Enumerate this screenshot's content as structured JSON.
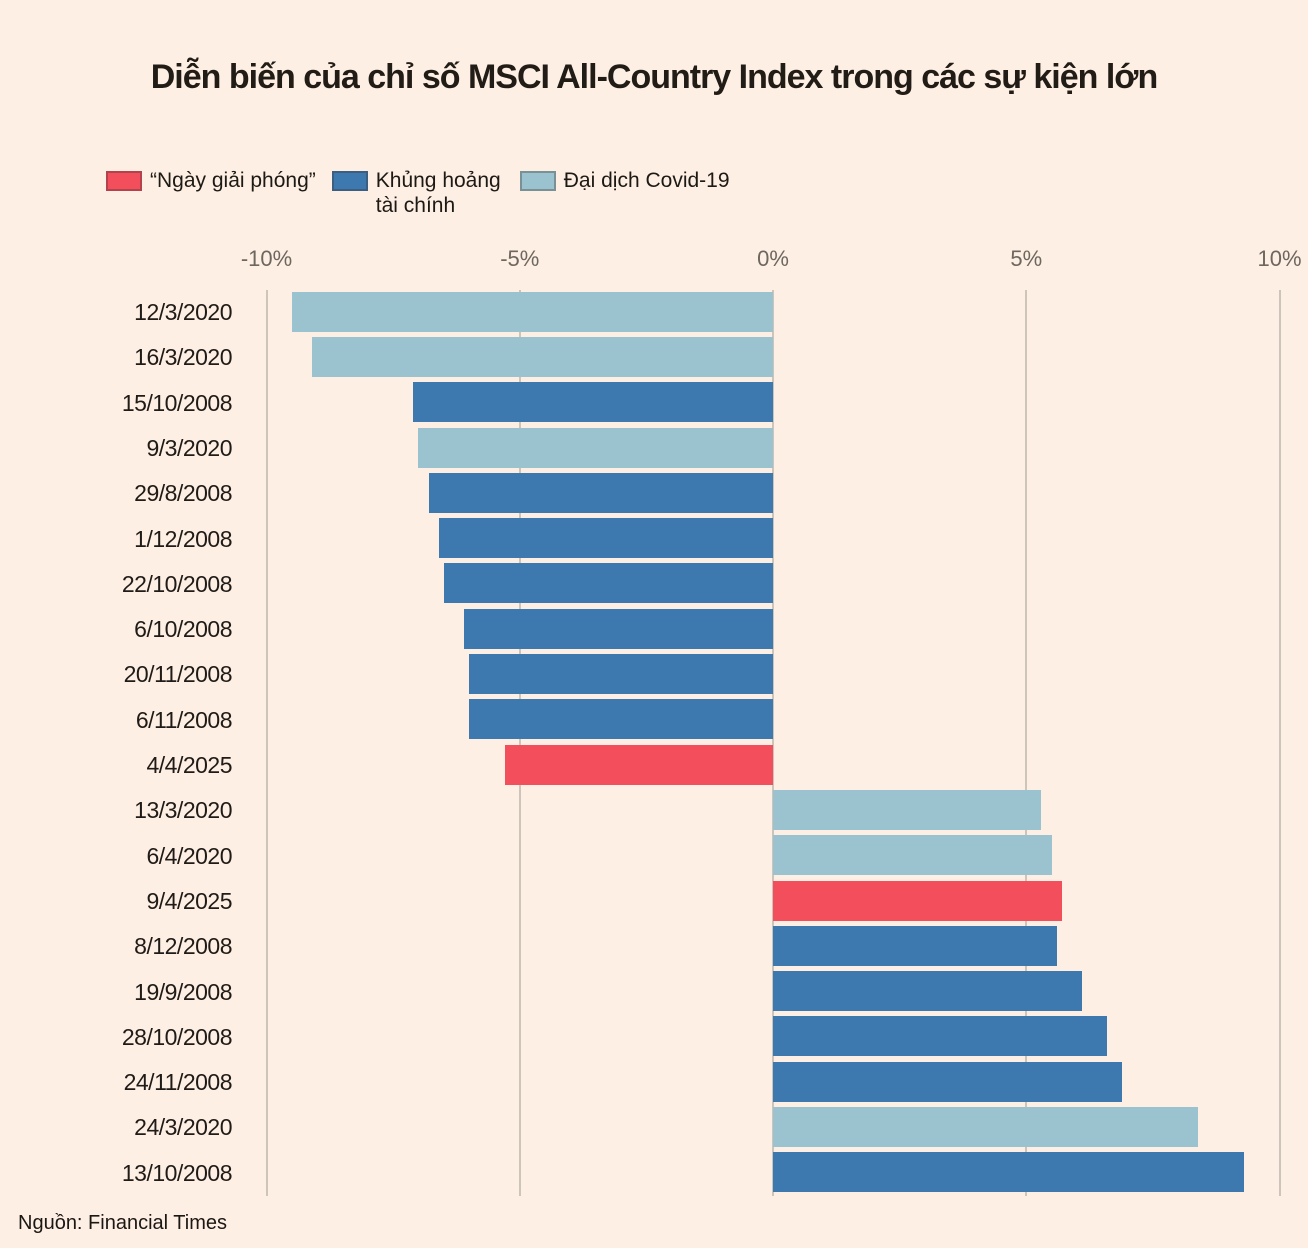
{
  "source": "Nguồn: Financial Times",
  "chart_data": {
    "type": "bar",
    "orientation": "horizontal",
    "title": "Diễn biến của chỉ số MSCI All-Country Index trong các sự kiện lớn",
    "xlabel": "",
    "ylabel": "",
    "xlim": [
      -10,
      10
    ],
    "grid": true,
    "legend_position": "top-left",
    "legend": [
      {
        "key": "liberation",
        "label": "“Ngày giải phóng”",
        "color": "#f24e5c"
      },
      {
        "key": "crisis",
        "label": "Khủng hoảng tài chính",
        "color": "#3d78ae"
      },
      {
        "key": "covid",
        "label": "Đại dịch Covid-19",
        "color": "#9ac3cf"
      }
    ],
    "axis_ticks": [
      {
        "value": -10,
        "label": "-10%"
      },
      {
        "value": -5,
        "label": "-5%"
      },
      {
        "value": 0,
        "label": "0%"
      },
      {
        "value": 5,
        "label": "5%"
      },
      {
        "value": 10,
        "label": "10%"
      }
    ],
    "unit": "%",
    "rows": [
      {
        "date": "12/3/2020",
        "value": -9.5,
        "event": "covid"
      },
      {
        "date": "16/3/2020",
        "value": -9.1,
        "event": "covid"
      },
      {
        "date": "15/10/2008",
        "value": -7.1,
        "event": "crisis"
      },
      {
        "date": "9/3/2020",
        "value": -7.0,
        "event": "covid"
      },
      {
        "date": "29/8/2008",
        "value": -6.8,
        "event": "crisis"
      },
      {
        "date": "1/12/2008",
        "value": -6.6,
        "event": "crisis"
      },
      {
        "date": "22/10/2008",
        "value": -6.5,
        "event": "crisis"
      },
      {
        "date": "6/10/2008",
        "value": -6.1,
        "event": "crisis"
      },
      {
        "date": "20/11/2008",
        "value": -6.0,
        "event": "crisis"
      },
      {
        "date": "6/11/2008",
        "value": -6.0,
        "event": "crisis"
      },
      {
        "date": "4/4/2025",
        "value": -5.3,
        "event": "liberation"
      },
      {
        "date": "13/3/2020",
        "value": 5.3,
        "event": "covid"
      },
      {
        "date": "6/4/2020",
        "value": 5.5,
        "event": "covid"
      },
      {
        "date": "9/4/2025",
        "value": 5.7,
        "event": "liberation"
      },
      {
        "date": "8/12/2008",
        "value": 5.6,
        "event": "crisis"
      },
      {
        "date": "19/9/2008",
        "value": 6.1,
        "event": "crisis"
      },
      {
        "date": "28/10/2008",
        "value": 6.6,
        "event": "crisis"
      },
      {
        "date": "24/11/2008",
        "value": 6.9,
        "event": "crisis"
      },
      {
        "date": "24/3/2020",
        "value": 8.4,
        "event": "covid"
      },
      {
        "date": "13/10/2008",
        "value": 9.3,
        "event": "crisis"
      }
    ]
  }
}
